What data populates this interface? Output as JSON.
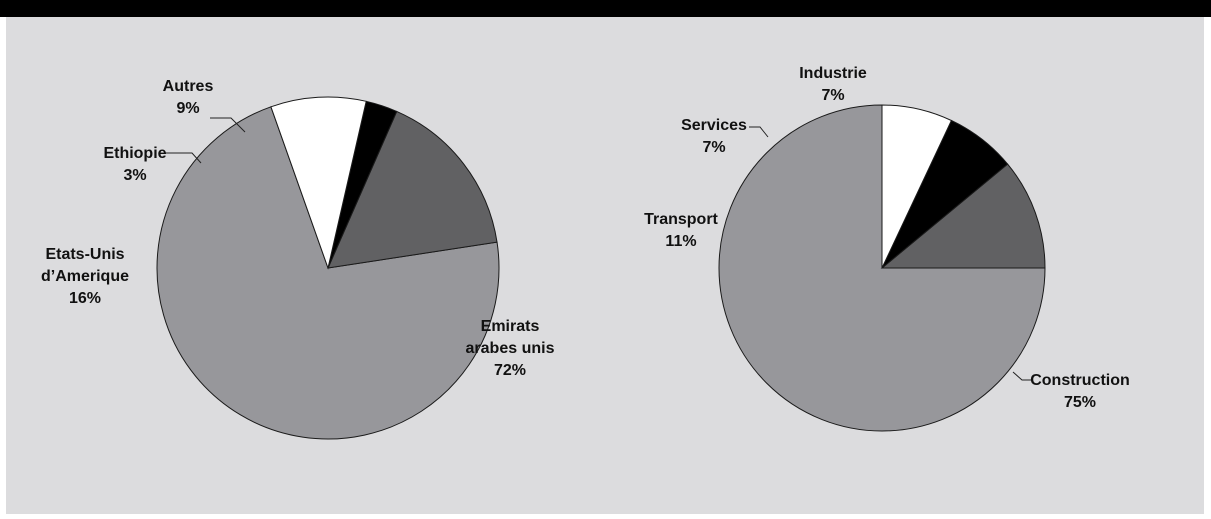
{
  "colors": {
    "panel_bg": "#dcdcde",
    "top_bar": "#000000",
    "slice_largest": "#97979b",
    "slice_second": "#616163",
    "slice_black": "#000000",
    "slice_white": "#ffffff"
  },
  "chart_data": [
    {
      "type": "pie",
      "title": "",
      "slices": [
        {
          "label_lines": [
            "Emirats",
            "arabes unis"
          ],
          "value": 72,
          "pct": "72%",
          "color": "#97979b"
        },
        {
          "label_lines": [
            "Etats-Unis",
            "d’Amerique"
          ],
          "value": 16,
          "pct": "16%",
          "color": "#616163"
        },
        {
          "label_lines": [
            "Ethiopie"
          ],
          "value": 3,
          "pct": "3%",
          "color": "#000000"
        },
        {
          "label_lines": [
            "Autres"
          ],
          "value": 9,
          "pct": "9%",
          "color": "#ffffff"
        }
      ]
    },
    {
      "type": "pie",
      "title": "",
      "slices": [
        {
          "label_lines": [
            "Construction"
          ],
          "value": 75,
          "pct": "75%",
          "color": "#97979b"
        },
        {
          "label_lines": [
            "Transport"
          ],
          "value": 11,
          "pct": "11%",
          "color": "#616163"
        },
        {
          "label_lines": [
            "Services"
          ],
          "value": 7,
          "pct": "7%",
          "color": "#000000"
        },
        {
          "label_lines": [
            "Industrie"
          ],
          "value": 7,
          "pct": "7%",
          "color": "#ffffff"
        }
      ]
    }
  ]
}
